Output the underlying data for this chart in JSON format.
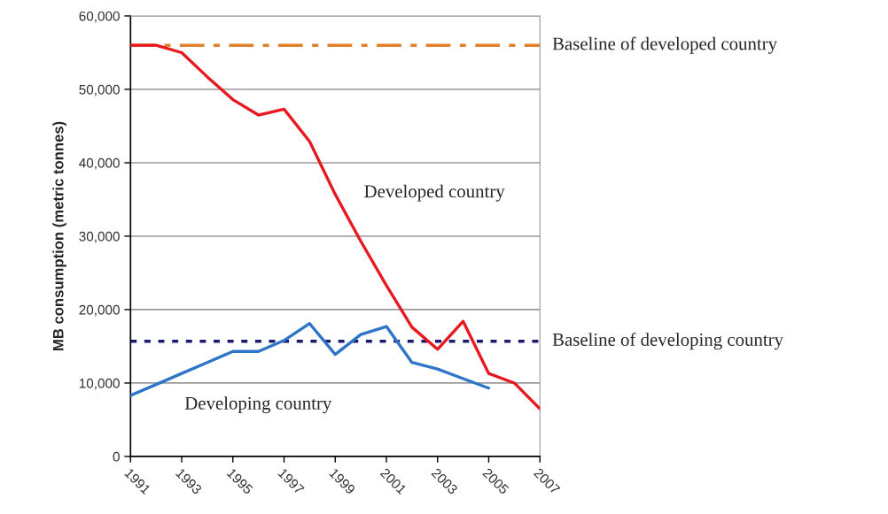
{
  "chart_data": {
    "type": "line",
    "ylabel": "MB consumption (metric tonnes)",
    "x": [
      1991,
      1992,
      1993,
      1994,
      1995,
      1996,
      1997,
      1998,
      1999,
      2000,
      2001,
      2002,
      2003,
      2004,
      2005,
      2006,
      2007
    ],
    "series": [
      {
        "name": "Developed country",
        "color": "#e8191e",
        "values": [
          56000,
          56000,
          55000,
          51700,
          48600,
          46500,
          47300,
          42900,
          35700,
          29300,
          23300,
          17600,
          14600,
          18400,
          11300,
          10000,
          6500
        ]
      },
      {
        "name": "Developing country",
        "color": "#2e75c9",
        "values": [
          8300,
          9800,
          11300,
          12800,
          14300,
          14300,
          15800,
          18100,
          13900,
          16600,
          17700,
          12800,
          11900,
          10600,
          9300,
          null,
          null
        ]
      }
    ],
    "xlim": [
      1991,
      2007
    ],
    "xticks": [
      1991,
      1993,
      1995,
      1997,
      1999,
      2001,
      2003,
      2005,
      2007
    ],
    "ylim": [
      0,
      60000
    ],
    "yticks": [
      {
        "value": 0,
        "label": "0"
      },
      {
        "value": 10000,
        "label": "10,000"
      },
      {
        "value": 20000,
        "label": "20,000"
      },
      {
        "value": 30000,
        "label": "30,000"
      },
      {
        "value": 40000,
        "label": "40,000"
      },
      {
        "value": 50000,
        "label": "50,000"
      },
      {
        "value": 60000,
        "label": "60,000"
      }
    ],
    "ref_lines": [
      {
        "axis": "y",
        "value": 56000,
        "label": "Baseline of developed country",
        "color": "#e0802a",
        "line_style": "dashdot"
      },
      {
        "axis": "y",
        "value": 15700,
        "label": "Baseline of developing country",
        "color": "#1a1a6e",
        "line_style": "dotted"
      }
    ],
    "grid": "y",
    "marker": "none",
    "line_style": "solid"
  }
}
